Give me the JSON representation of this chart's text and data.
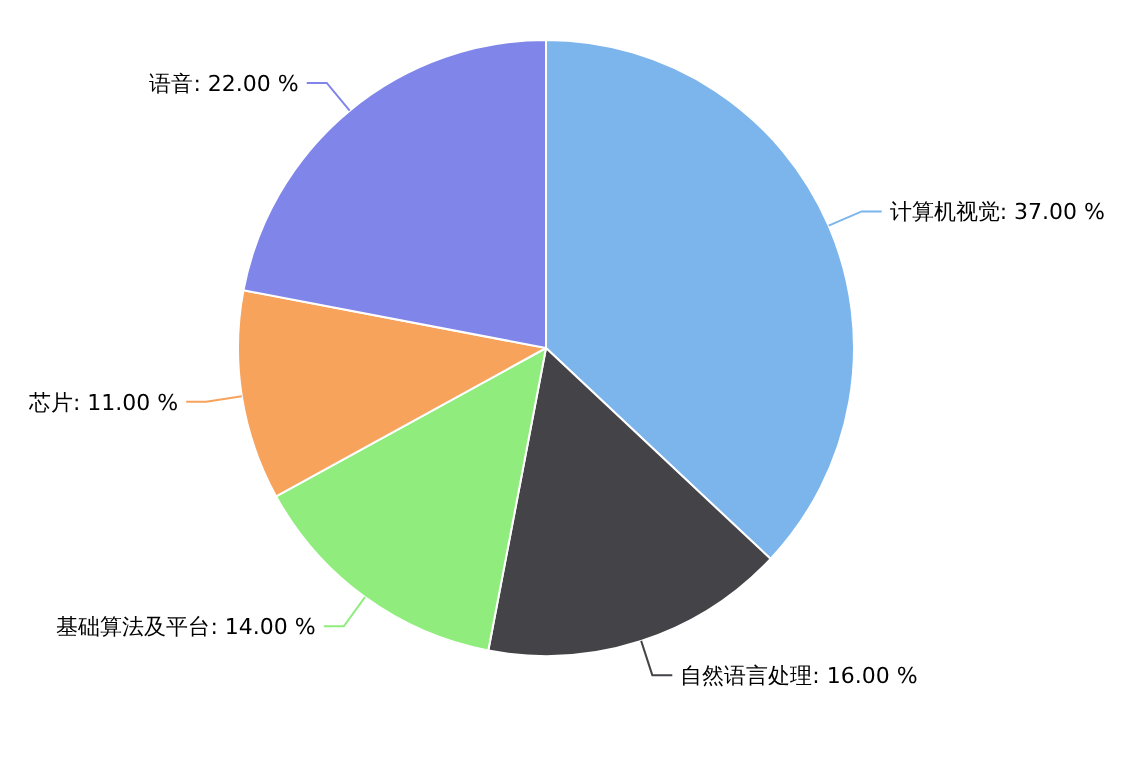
{
  "chart_data": {
    "type": "pie",
    "categories": [
      "计算机视觉",
      "自然语言处理",
      "基础算法及平台",
      "芯片",
      "语音"
    ],
    "values": [
      37,
      16,
      14,
      11,
      22
    ],
    "value_labels": [
      "37.00 %",
      "16.00 %",
      "14.00 %",
      "11.00 %",
      "22.00 %"
    ],
    "colors": [
      "#7cb5ec",
      "#434348",
      "#90ed7d",
      "#f7a35c",
      "#8085e9"
    ]
  }
}
